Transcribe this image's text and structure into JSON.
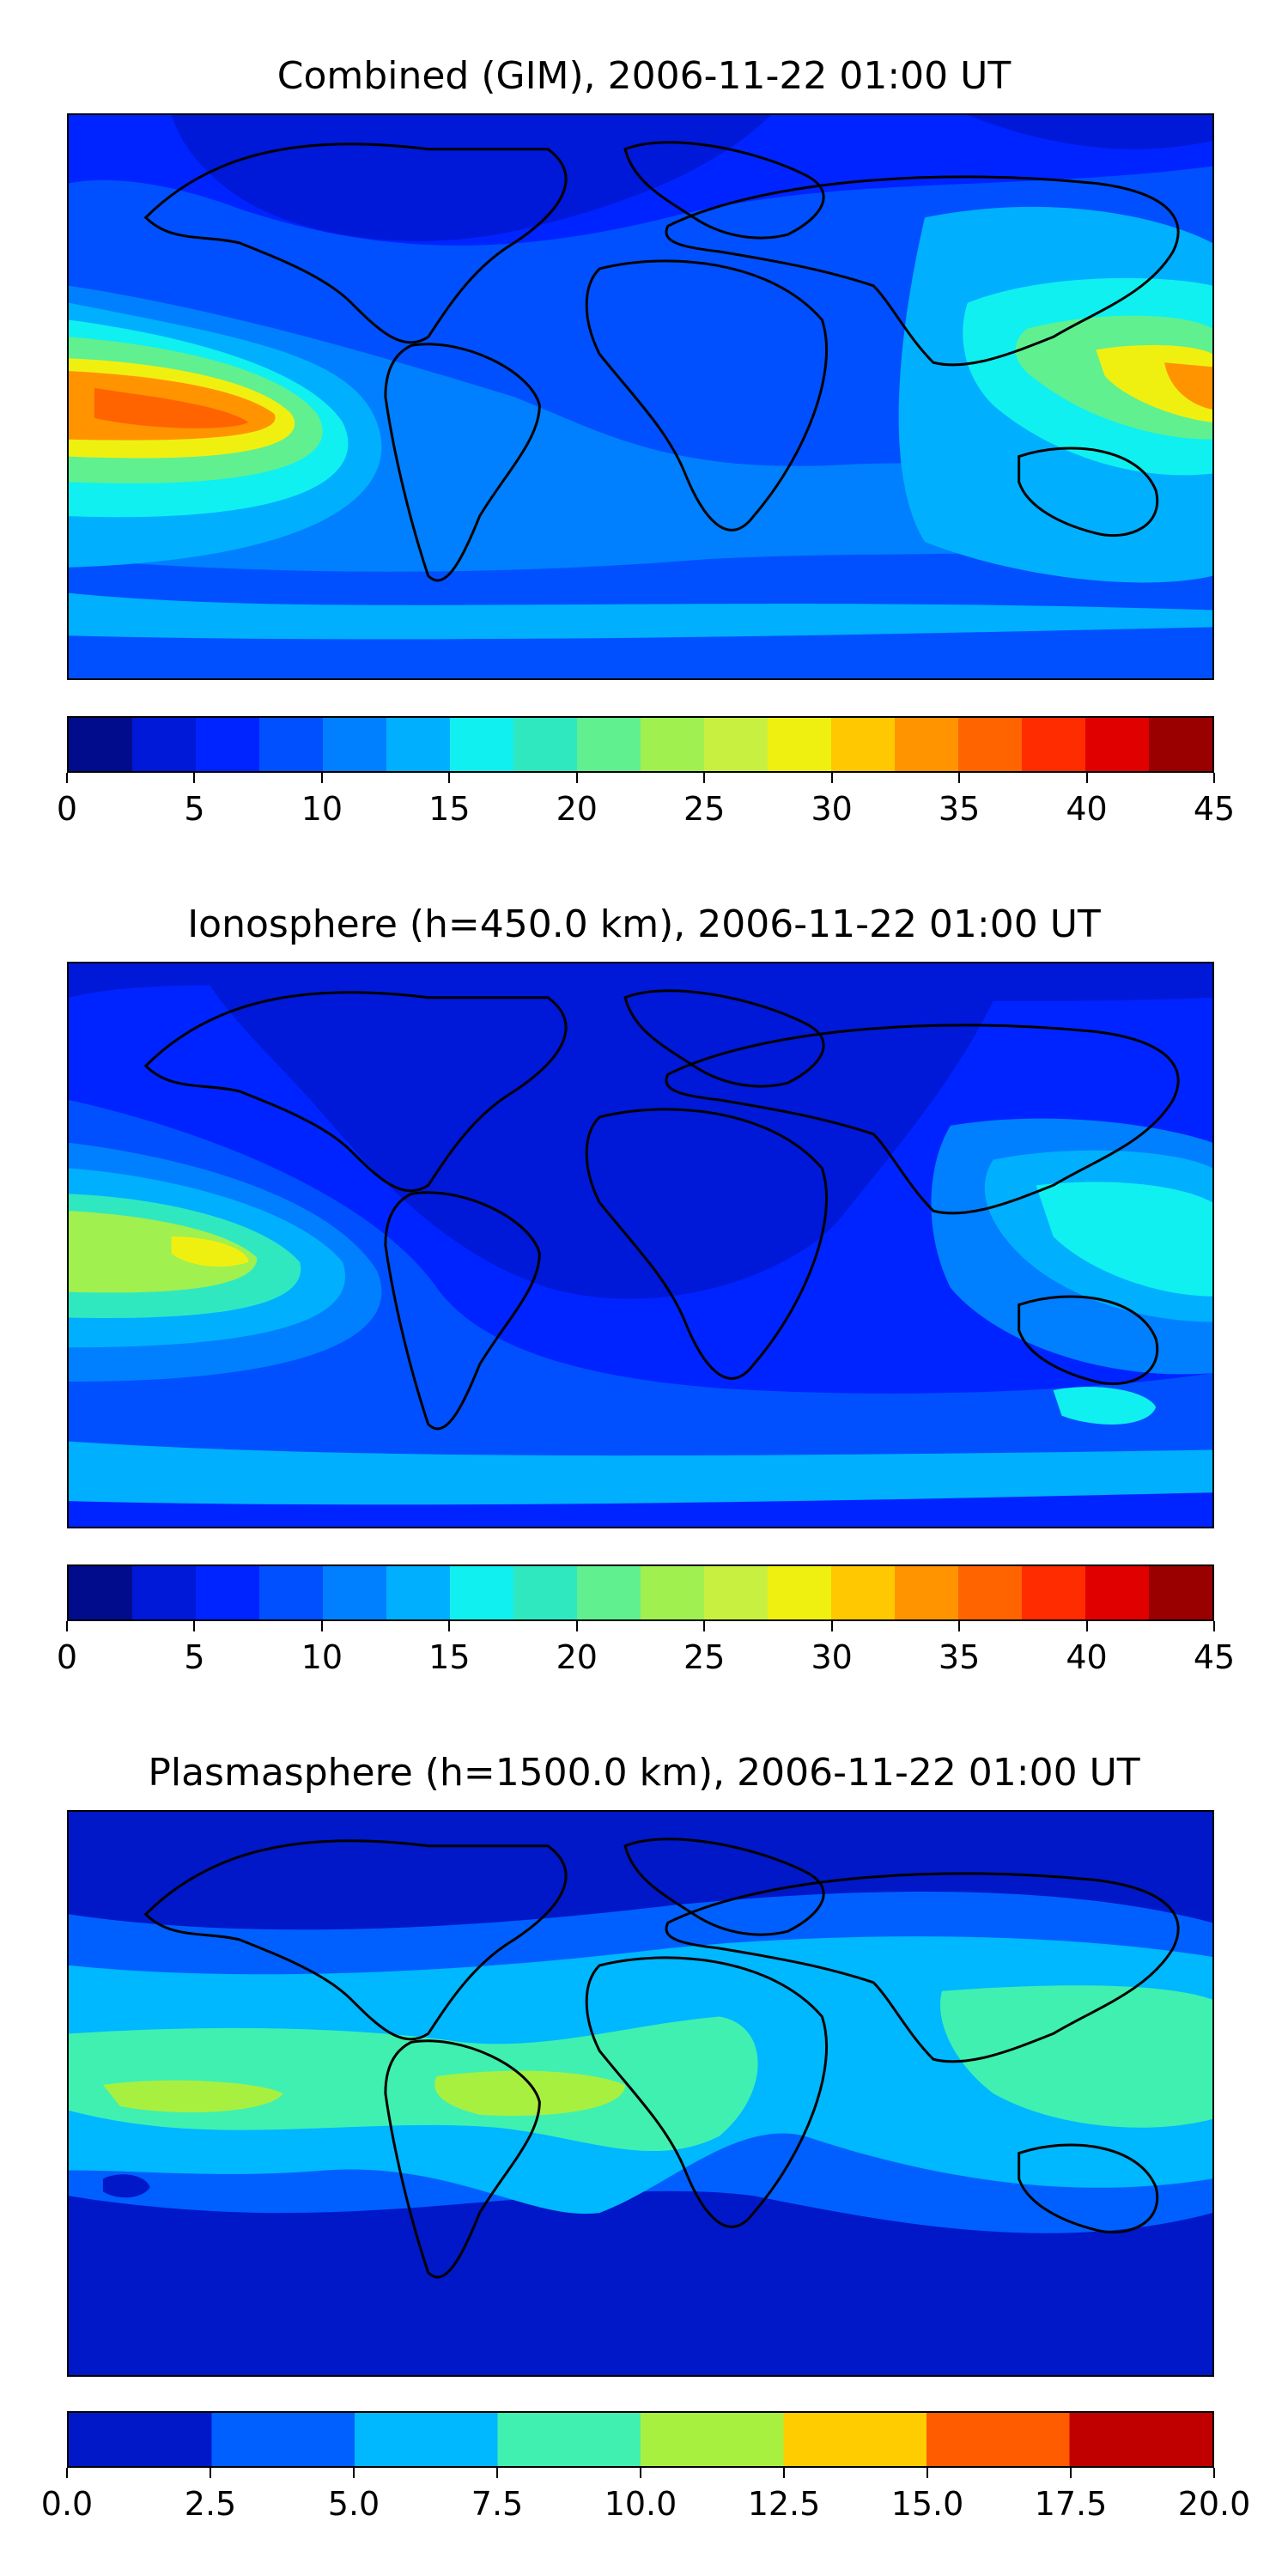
{
  "panels": [
    {
      "title": "Combined (GIM), 2006-11-22 01:00 UT",
      "colorbar": {
        "ticks": [
          "0",
          "5",
          "10",
          "15",
          "20",
          "25",
          "30",
          "35",
          "40",
          "45"
        ],
        "range": [
          0,
          45
        ],
        "step": 2.5,
        "colors": [
          "#000c8c",
          "#0018d8",
          "#0024ff",
          "#0050ff",
          "#0080ff",
          "#00b0ff",
          "#10f0f0",
          "#30e8c0",
          "#60f090",
          "#a0f050",
          "#c8f040",
          "#f0f010",
          "#ffc800",
          "#ff9400",
          "#ff6400",
          "#ff2c00",
          "#e00000",
          "#9a0000"
        ]
      }
    },
    {
      "title": "Ionosphere  (h=450.0 km), 2006-11-22 01:00 UT",
      "colorbar": {
        "ticks": [
          "0",
          "5",
          "10",
          "15",
          "20",
          "25",
          "30",
          "35",
          "40",
          "45"
        ],
        "range": [
          0,
          45
        ],
        "step": 2.5,
        "colors": [
          "#000c8c",
          "#0018d8",
          "#0024ff",
          "#0050ff",
          "#0080ff",
          "#00b0ff",
          "#10f0f0",
          "#30e8c0",
          "#60f090",
          "#a0f050",
          "#c8f040",
          "#f0f010",
          "#ffc800",
          "#ff9400",
          "#ff6400",
          "#ff2c00",
          "#e00000",
          "#9a0000"
        ]
      }
    },
    {
      "title": "Plasmasphere (h=1500.0 km), 2006-11-22 01:00 UT",
      "colorbar": {
        "ticks": [
          "0.0",
          "2.5",
          "5.0",
          "7.5",
          "10.0",
          "12.5",
          "15.0",
          "17.5",
          "20.0"
        ],
        "range": [
          0,
          20
        ],
        "step": 2.5,
        "colors": [
          "#0018c8",
          "#0060ff",
          "#00b8ff",
          "#40f0b0",
          "#a8f040",
          "#ffcc00",
          "#ff5c00",
          "#c00000"
        ]
      }
    }
  ]
}
